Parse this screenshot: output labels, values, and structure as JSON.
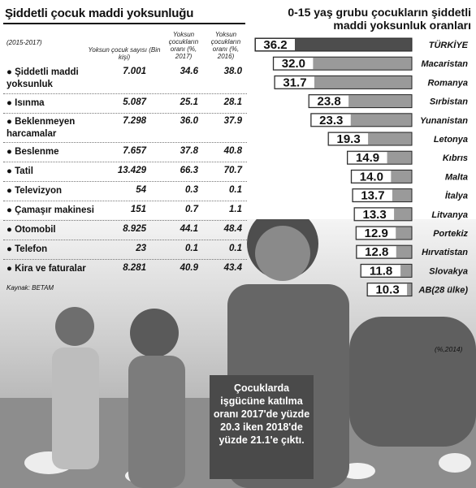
{
  "left": {
    "title": "Şiddetli çocuk maddi yoksunluğu",
    "period": "(2015-2017)",
    "columns": [
      "Yoksun çocuk sayısı (Bin kişi)",
      "Yoksun çocukların oranı (%, 2017)",
      "Yoksun çocukların oranı (%, 2016)"
    ],
    "rows": [
      {
        "label": "● Şiddetli maddi yoksunluk",
        "count": "7.001",
        "rate2017": "34.6",
        "rate2016": "38.0"
      },
      {
        "label": "● Isınma",
        "count": "5.087",
        "rate2017": "25.1",
        "rate2016": "28.1"
      },
      {
        "label": "● Beklenmeyen harcamalar",
        "count": "7.298",
        "rate2017": "36.0",
        "rate2016": "37.9"
      },
      {
        "label": "● Beslenme",
        "count": "7.657",
        "rate2017": "37.8",
        "rate2016": "40.8"
      },
      {
        "label": "● Tatil",
        "count": "13.429",
        "rate2017": "66.3",
        "rate2016": "70.7"
      },
      {
        "label": "● Televizyon",
        "count": "54",
        "rate2017": "0.3",
        "rate2016": "0.1"
      },
      {
        "label": "● Çamaşır makinesi",
        "count": "151",
        "rate2017": "0.7",
        "rate2016": "1.1"
      },
      {
        "label": "● Otomobil",
        "count": "8.925",
        "rate2017": "44.1",
        "rate2016": "48.4"
      },
      {
        "label": "● Telefon",
        "count": "23",
        "rate2017": "0.1",
        "rate2016": "0.1"
      },
      {
        "label": "● Kira ve faturalar",
        "count": "8.281",
        "rate2017": "40.9",
        "rate2016": "43.4"
      }
    ],
    "source": "Kaynak: BETAM"
  },
  "chart_data": {
    "type": "bar",
    "title": "0-15 yaş grubu çocukların şiddetli maddi yoksunluk oranları",
    "unit_note": "(%,2014)",
    "categories": [
      "TÜRKİYE",
      "Macaristan",
      "Romanya",
      "Sırbistan",
      "Yunanistan",
      "Letonya",
      "Kıbrıs",
      "Malta",
      "İtalya",
      "Litvanya",
      "Portekiz",
      "Hırvatistan",
      "Slovakya",
      "AB(28 ülke)"
    ],
    "values": [
      36.2,
      32.0,
      31.7,
      23.8,
      23.3,
      19.3,
      14.9,
      14.0,
      13.7,
      13.3,
      12.9,
      12.8,
      11.8,
      10.3
    ],
    "value_labels": [
      "36.2",
      "32.0",
      "31.7",
      "23.8",
      "23.3",
      "19.3",
      "14.9",
      "14.0",
      "13.7",
      "13.3",
      "12.9",
      "12.8",
      "11.8",
      "10.3"
    ],
    "orientation": "horizontal",
    "highlight_category": "TÜRKİYE",
    "colors": {
      "bar": "#9a9a9a",
      "highlight": "#4d4d4d",
      "label_bg": "#ffffff"
    }
  },
  "callout": {
    "text": "Çocuklarda işgücüne katılma oranı 2017'de yüzde 20.3 iken 2018'de yüzde 21.1'e çıktı."
  }
}
